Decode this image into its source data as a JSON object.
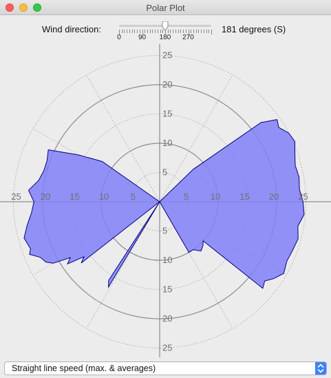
{
  "window": {
    "title": "Polar Plot"
  },
  "controls": {
    "wind_label": "Wind direction:",
    "slider_value": 181,
    "slider_max": 360,
    "tick_labels": [
      "0",
      "90",
      "180",
      "270"
    ],
    "readout": "181 degrees (S)"
  },
  "plot": {
    "ring_labels": [
      "5",
      "10",
      "15",
      "20",
      "25"
    ],
    "max_radius": 25,
    "fill_color": "#8080f8",
    "line_color": "#000080"
  },
  "chart_data": {
    "type": "polar-area",
    "units": "speed",
    "radial_range": [
      0,
      25
    ],
    "angular_grid_step_deg": 30,
    "series": [
      {
        "name": "max",
        "points": [
          [
            0,
            0
          ],
          [
            46,
            8
          ],
          [
            52,
            22
          ],
          [
            55,
            24.5
          ],
          [
            58,
            24
          ],
          [
            62,
            25
          ],
          [
            66,
            25.3
          ],
          [
            70,
            24.6
          ],
          [
            75,
            24
          ],
          [
            80,
            24.2
          ],
          [
            85,
            24
          ],
          [
            90,
            24.5
          ],
          [
            95,
            24.8
          ],
          [
            100,
            24
          ],
          [
            105,
            24.5
          ],
          [
            110,
            24.2
          ],
          [
            115,
            24
          ],
          [
            120,
            24.5
          ],
          [
            124,
            23.5
          ],
          [
            127,
            22.5
          ],
          [
            130,
            23
          ],
          [
            132,
            10
          ],
          [
            135,
            10.5
          ],
          [
            140,
            11
          ],
          [
            145,
            10
          ],
          [
            150,
            10
          ],
          [
            153,
            0
          ],
          [
            210,
            0
          ],
          [
            211,
            17
          ],
          [
            213,
            16
          ],
          [
            215,
            0
          ],
          [
            230,
            0
          ],
          [
            232,
            17
          ],
          [
            234,
            16
          ],
          [
            236,
            19
          ],
          [
            238,
            18
          ],
          [
            240,
            21
          ],
          [
            242,
            22
          ],
          [
            245,
            22.5
          ],
          [
            248,
            24
          ],
          [
            250,
            23.5
          ],
          [
            255,
            24
          ],
          [
            260,
            23
          ],
          [
            265,
            22
          ],
          [
            270,
            21.5
          ],
          [
            275,
            22.5
          ],
          [
            280,
            21
          ],
          [
            285,
            20.5
          ],
          [
            290,
            20.5
          ],
          [
            295,
            21
          ],
          [
            300,
            16
          ],
          [
            305,
            12
          ]
        ]
      }
    ]
  }
}
